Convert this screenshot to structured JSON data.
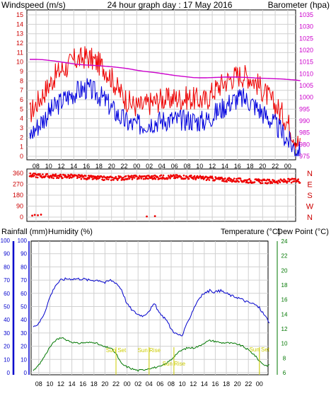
{
  "header": {
    "left_label": "Windspeed (m/s)",
    "title": "24 hour graph day : 17 May 2016",
    "right_label": "Barometer (hpa)"
  },
  "bottom_header": {
    "rainfall_label": "Rainfall (mm)",
    "humidity_label": "Humidity (%)",
    "temperature_label": "Temperature (°C)",
    "dewpoint_label": "Dew Point (°C)"
  },
  "colors": {
    "wind_gust": "#ee0000",
    "wind_avg": "#0000dd",
    "barometer": "#cc00cc",
    "direction": "#ee0000",
    "humidity": "#0000cc",
    "temperature": "#007700",
    "dewpoint": "#cccc00",
    "grid": "#d0d0d0"
  },
  "chart_data": [
    {
      "type": "line",
      "panel": "wind-baro",
      "x_tick_labels": [
        "08",
        "10",
        "12",
        "14",
        "16",
        "18",
        "20",
        "22",
        "00",
        "02",
        "04",
        "06",
        "08",
        "10",
        "12",
        "14",
        "16",
        "18",
        "20",
        "22",
        "00"
      ],
      "left_axis": {
        "ticks": [
          "0",
          "1",
          "2",
          "3",
          "4",
          "5",
          "6",
          "7",
          "8",
          "9",
          "10",
          "11",
          "12",
          "13",
          "14",
          "15"
        ],
        "ylim": [
          0,
          15
        ]
      },
      "right_axis": {
        "ticks": [
          "975",
          "980",
          "985",
          "990",
          "995",
          "1000",
          "1005",
          "1010",
          "1015",
          "1020",
          "1025",
          "1030",
          "1035"
        ],
        "ylim": [
          975,
          1035
        ]
      },
      "x_hours": [
        7,
        8,
        9,
        10,
        11,
        12,
        13,
        14,
        15,
        16,
        17,
        18,
        19,
        20,
        21,
        22,
        23,
        24,
        25,
        26,
        27,
        28,
        29,
        30,
        31,
        32,
        33,
        34,
        35,
        36,
        37,
        38,
        39,
        40,
        41,
        42,
        43,
        44,
        45,
        46,
        47,
        48,
        49,
        50
      ],
      "series": [
        {
          "name": "gust",
          "values": [
            4.5,
            5.5,
            6.5,
            7.5,
            8.5,
            9.2,
            9.5,
            10.2,
            10.3,
            10.6,
            10.2,
            9.8,
            9.3,
            8.3,
            7.1,
            6.3,
            5.6,
            5.3,
            5.3,
            5.6,
            5.8,
            6.1,
            6.0,
            6.2,
            6.1,
            6.2,
            6.1,
            6.0,
            5.9,
            6.8,
            7.4,
            7.9,
            8.3,
            8.6,
            8.6,
            8.4,
            7.8,
            7.0,
            6.2,
            5.4,
            4.6,
            3.6,
            2.2,
            1.0
          ]
        },
        {
          "name": "average",
          "values": [
            2.2,
            3.0,
            3.8,
            4.6,
            5.2,
            5.8,
            6.3,
            6.7,
            7.0,
            7.2,
            6.9,
            6.5,
            5.9,
            5.1,
            4.4,
            3.8,
            3.4,
            3.3,
            3.4,
            3.6,
            3.7,
            3.8,
            3.9,
            3.9,
            3.8,
            3.9,
            3.8,
            3.7,
            3.8,
            4.3,
            4.8,
            5.3,
            5.8,
            6.1,
            6.1,
            5.8,
            5.2,
            4.6,
            4.0,
            3.3,
            2.6,
            1.7,
            0.9,
            0.3
          ]
        },
        {
          "name": "barometer",
          "values": [
            1016.1,
            1016.1,
            1016.0,
            1015.7,
            1015.4,
            1015.0,
            1014.6,
            1014.2,
            1013.9,
            1013.7,
            1013.6,
            1013.4,
            1013.2,
            1013.0,
            1012.7,
            1012.4,
            1012.0,
            1011.5,
            1011.1,
            1010.8,
            1010.5,
            1010.1,
            1009.7,
            1009.3,
            1009.0,
            1008.7,
            1008.4,
            1008.3,
            1008.3,
            1008.4,
            1008.5,
            1008.6,
            1008.6,
            1008.6,
            1008.5,
            1008.4,
            1008.2,
            1008.1,
            1008.0,
            1007.9,
            1007.8,
            1007.6,
            1007.4,
            1007.1
          ]
        }
      ]
    },
    {
      "type": "scatter",
      "panel": "wind-direction",
      "left_axis": {
        "ticks": [
          "0",
          "90",
          "180",
          "270",
          "360"
        ],
        "ylim": [
          0,
          360
        ]
      },
      "right_axis": {
        "ticks": [
          "N",
          "W",
          "S",
          "E",
          "N"
        ]
      },
      "outlier_points": [
        {
          "x": 7.4,
          "y": 12
        },
        {
          "x": 7.8,
          "y": 18
        },
        {
          "x": 8.3,
          "y": 15
        },
        {
          "x": 8.8,
          "y": 20
        },
        {
          "x": 25.6,
          "y": 5
        },
        {
          "x": 26.9,
          "y": 8
        }
      ],
      "band": {
        "x": [
          7,
          9,
          11,
          13,
          15,
          17,
          19,
          21,
          23,
          25,
          27,
          29,
          31,
          33,
          35,
          37,
          39,
          41,
          43,
          45,
          47,
          49,
          50
        ],
        "y": [
          345,
          340,
          335,
          336,
          330,
          322,
          318,
          320,
          325,
          328,
          326,
          330,
          332,
          325,
          320,
          312,
          305,
          300,
          296,
          292,
          295,
          300,
          298
        ]
      }
    },
    {
      "type": "line",
      "panel": "temp-humidity",
      "rain_axis": {
        "ticks": [
          "0",
          "10",
          "20",
          "30",
          "40",
          "50",
          "60",
          "70",
          "80",
          "90",
          "100"
        ],
        "ylim": [
          0,
          100
        ]
      },
      "humidity_axis": {
        "ticks": [
          "0",
          "10",
          "20",
          "30",
          "40",
          "50",
          "60",
          "70",
          "80",
          "90",
          "100"
        ],
        "ylim": [
          0,
          100
        ]
      },
      "temp_axis": {
        "ticks": [
          "6",
          "8",
          "10",
          "12",
          "14",
          "16",
          "18",
          "20",
          "22",
          "24"
        ],
        "ylim": [
          6,
          24
        ]
      },
      "annotations": [
        "Sun Set",
        "Sun Rise",
        "Sun Set",
        "Sun Rise"
      ],
      "x_hours": [
        7,
        8,
        9,
        10,
        11,
        12,
        13,
        14,
        15,
        16,
        17,
        18,
        19,
        20,
        21,
        22,
        23,
        24,
        25,
        26,
        27,
        28,
        29,
        30,
        31,
        32,
        33,
        34,
        35,
        36,
        37,
        38,
        39,
        40,
        41,
        42,
        43,
        44,
        45,
        46,
        47,
        48,
        49,
        50
      ],
      "series": [
        {
          "name": "Humidity",
          "axis": "humidity",
          "values": [
            35,
            37,
            45,
            57,
            66,
            70,
            71,
            71,
            71,
            71,
            70,
            70,
            70,
            68,
            70,
            68,
            63,
            52,
            47,
            44,
            43,
            47,
            52,
            44,
            41,
            33,
            29,
            28,
            38,
            48,
            56,
            60,
            62,
            61,
            62,
            60,
            58,
            57,
            55,
            53,
            52,
            49,
            43,
            37
          ]
        },
        {
          "name": "Temperature",
          "axis": "temp",
          "values": [
            6.2,
            7.0,
            8.2,
            9.5,
            10.4,
            10.8,
            10.5,
            10.2,
            10.0,
            10.1,
            10.1,
            10.2,
            9.8,
            9.5,
            9.4,
            8.6,
            7.2,
            6.8,
            6.5,
            6.3,
            6.4,
            6.6,
            6.7,
            6.8,
            7.2,
            7.8,
            8.6,
            9.1,
            9.4,
            9.4,
            9.6,
            10.1,
            10.4,
            10.3,
            10.1,
            10.1,
            10.0,
            9.9,
            9.6,
            9.1,
            8.5,
            7.6,
            7.0,
            7.0
          ]
        }
      ]
    }
  ]
}
